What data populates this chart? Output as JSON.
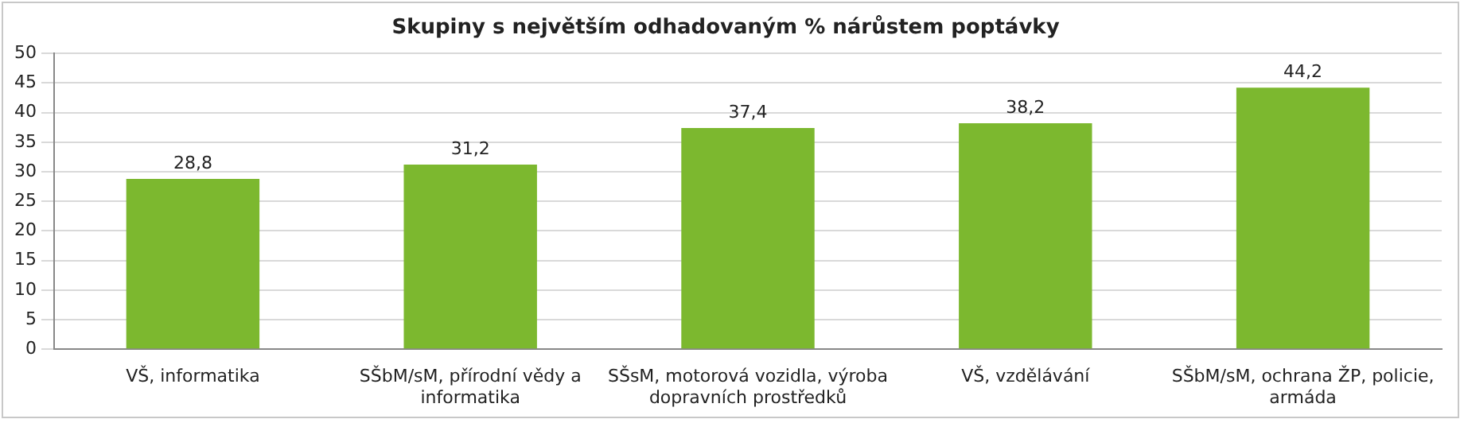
{
  "chart_data": {
    "type": "bar",
    "title": "Skupiny s největším odhadovaným % nárůstem poptávky",
    "categories": [
      "VŠ, informatika",
      "SŠbM/sM, přírodní vědy a informatika",
      "SŠsM, motorová vozidla, výroba dopravních prostředků",
      "VŠ, vzdělávání",
      "SŠbM/sM, ochrana ŽP, policie, armáda"
    ],
    "values": [
      28.8,
      31.2,
      37.4,
      38.2,
      44.2
    ],
    "value_labels": [
      "28,8",
      "31,2",
      "37,4",
      "38,2",
      "44,2"
    ],
    "color": "#7cb82f",
    "ylim": [
      0,
      50
    ],
    "yticks": [
      0,
      5,
      10,
      15,
      20,
      25,
      30,
      35,
      40,
      45,
      50
    ],
    "grid": "y",
    "legend": false
  }
}
